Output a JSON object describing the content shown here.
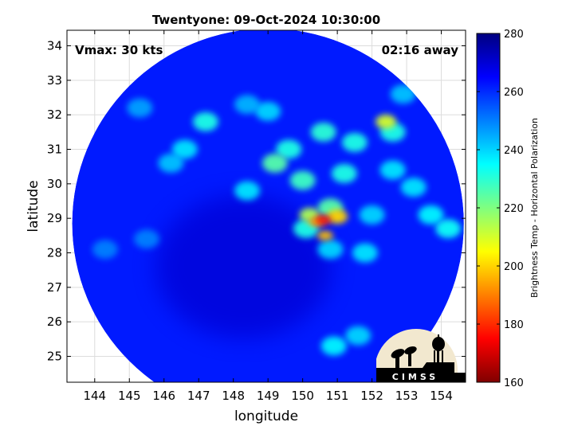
{
  "chart_data": {
    "type": "heatmap",
    "title": "Twentyone: 09-Oct-2024 10:30:00",
    "xlabel": "longitude",
    "ylabel": "latitude",
    "xlim": [
      143.2,
      154.7
    ],
    "ylim": [
      24.25,
      34.45
    ],
    "xticks": [
      144,
      145,
      146,
      147,
      148,
      149,
      150,
      151,
      152,
      153,
      154
    ],
    "yticks": [
      25,
      26,
      27,
      28,
      29,
      30,
      31,
      32,
      33,
      34
    ],
    "grid": true,
    "annotations": {
      "vmax": "Vmax: 30 kts",
      "time_away": "02:16 away"
    },
    "colorbar": {
      "label": "Brightness Temp - Horizontal Polarization",
      "range": [
        160,
        280
      ],
      "ticks": [
        160,
        180,
        200,
        220,
        240,
        260,
        280
      ],
      "colormap": "jet"
    },
    "swath": {
      "center_lon": 149.0,
      "center_lat": 28.85,
      "radius_lon": 5.65,
      "radius_lat": 5.65,
      "background_value": 262
    },
    "features": [
      {
        "lon": 150.6,
        "lat": 28.95,
        "value": 178
      },
      {
        "lon": 150.4,
        "lat": 28.9,
        "value": 195
      },
      {
        "lon": 151.0,
        "lat": 29.05,
        "value": 200
      },
      {
        "lon": 150.65,
        "lat": 28.5,
        "value": 198
      },
      {
        "lon": 150.2,
        "lat": 29.1,
        "value": 215
      },
      {
        "lon": 150.8,
        "lat": 29.3,
        "value": 225
      },
      {
        "lon": 150.1,
        "lat": 28.7,
        "value": 232
      },
      {
        "lon": 152.4,
        "lat": 31.8,
        "value": 210
      },
      {
        "lon": 152.6,
        "lat": 31.5,
        "value": 232
      },
      {
        "lon": 150.0,
        "lat": 30.1,
        "value": 228
      },
      {
        "lon": 149.2,
        "lat": 30.6,
        "value": 225
      },
      {
        "lon": 149.6,
        "lat": 31.0,
        "value": 232
      },
      {
        "lon": 150.6,
        "lat": 31.5,
        "value": 230
      },
      {
        "lon": 151.5,
        "lat": 31.2,
        "value": 232
      },
      {
        "lon": 151.2,
        "lat": 30.3,
        "value": 232
      },
      {
        "lon": 152.6,
        "lat": 30.4,
        "value": 238
      },
      {
        "lon": 153.2,
        "lat": 29.9,
        "value": 238
      },
      {
        "lon": 153.7,
        "lat": 29.1,
        "value": 236
      },
      {
        "lon": 154.2,
        "lat": 28.7,
        "value": 234
      },
      {
        "lon": 147.2,
        "lat": 31.8,
        "value": 232
      },
      {
        "lon": 146.6,
        "lat": 31.0,
        "value": 238
      },
      {
        "lon": 146.2,
        "lat": 30.6,
        "value": 242
      },
      {
        "lon": 148.4,
        "lat": 29.8,
        "value": 238
      },
      {
        "lon": 149.0,
        "lat": 32.1,
        "value": 240
      },
      {
        "lon": 148.4,
        "lat": 32.3,
        "value": 244
      },
      {
        "lon": 152.0,
        "lat": 29.1,
        "value": 240
      },
      {
        "lon": 151.8,
        "lat": 28.0,
        "value": 238
      },
      {
        "lon": 150.8,
        "lat": 28.1,
        "value": 240
      },
      {
        "lon": 152.9,
        "lat": 32.6,
        "value": 242
      },
      {
        "lon": 150.9,
        "lat": 25.3,
        "value": 236
      },
      {
        "lon": 151.6,
        "lat": 25.6,
        "value": 240
      },
      {
        "lon": 145.3,
        "lat": 32.2,
        "value": 246
      },
      {
        "lon": 144.3,
        "lat": 28.1,
        "value": 250
      },
      {
        "lon": 145.5,
        "lat": 28.4,
        "value": 250
      }
    ],
    "cold_region": {
      "lon": 148.3,
      "lat": 27.6,
      "value": 270
    }
  },
  "logo": {
    "text": "CIMSS"
  }
}
